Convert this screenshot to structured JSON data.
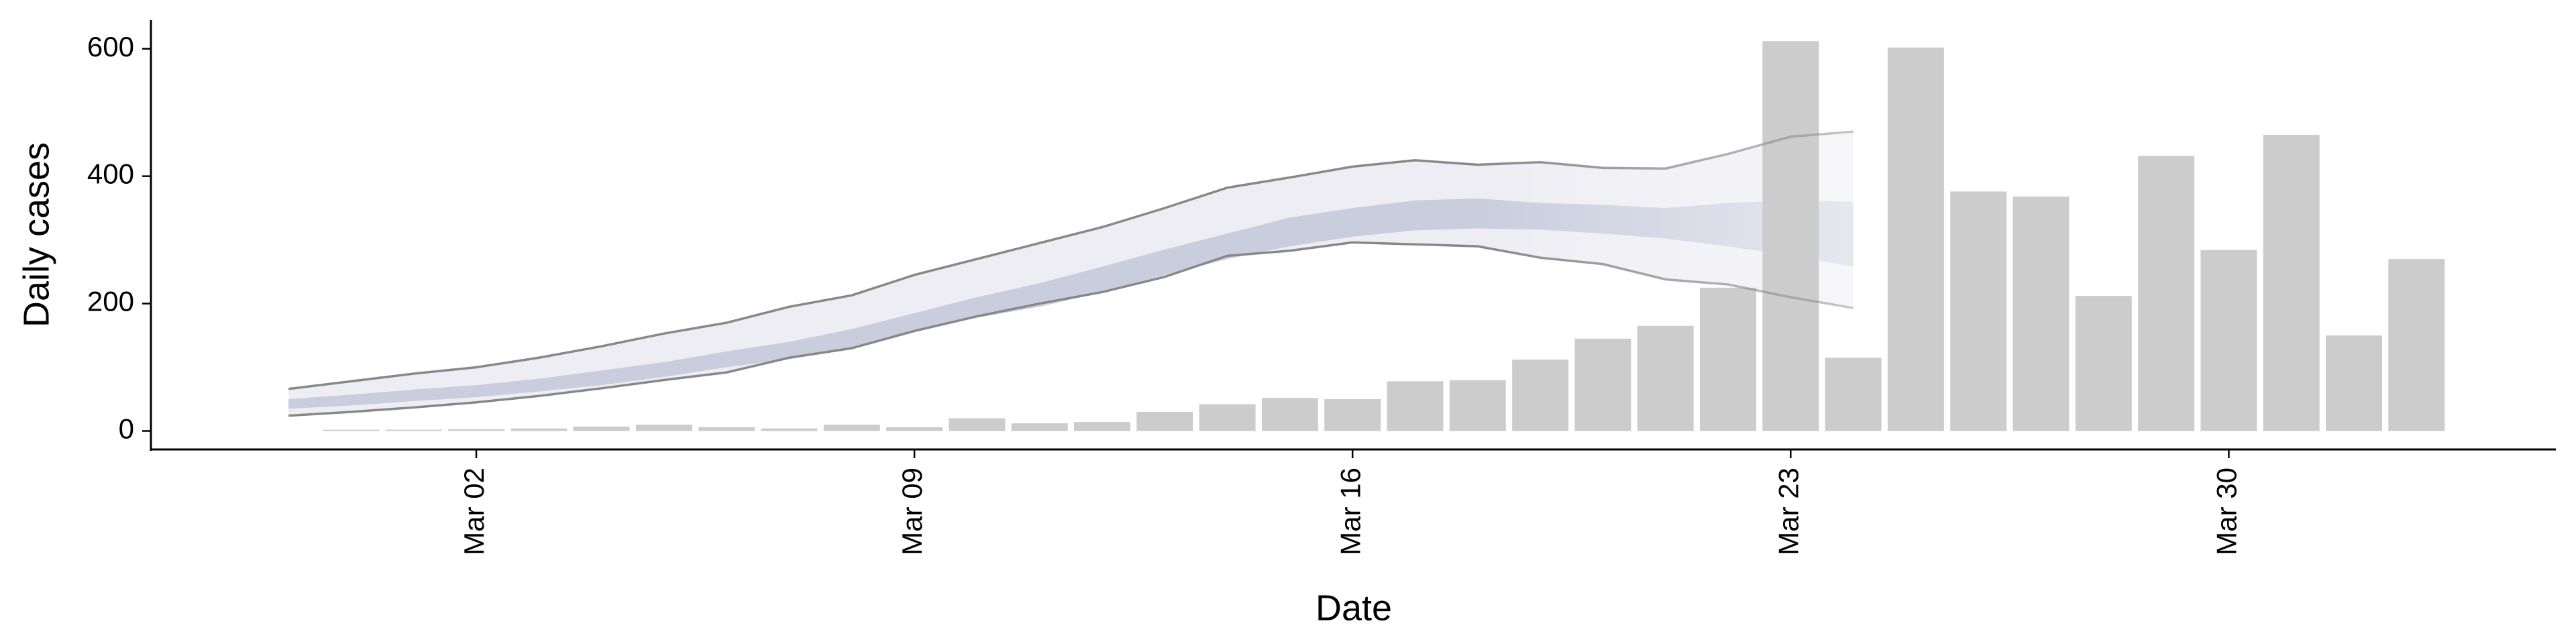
{
  "chart_data": {
    "type": "bar",
    "x_label": "Date",
    "y_label": "Daily cases",
    "categories": [
      null,
      null,
      null,
      "Mar 02",
      null,
      null,
      null,
      null,
      null,
      null,
      "Mar 09",
      null,
      null,
      null,
      null,
      null,
      null,
      "Mar 16",
      null,
      null,
      null,
      null,
      null,
      null,
      "Mar 23",
      null,
      null,
      null,
      null,
      null,
      null,
      "Mar 30",
      null,
      null,
      null
    ],
    "values": [
      null,
      2,
      2,
      3,
      4,
      7,
      10,
      6,
      4,
      10,
      6,
      20,
      12,
      14,
      30,
      42,
      52,
      50,
      78,
      80,
      112,
      145,
      165,
      225,
      612,
      115,
      602,
      376,
      368,
      212,
      432,
      284,
      465,
      150,
      270
    ],
    "color": "#cccccc",
    "interval_outer": {
      "color": "#ededf3",
      "line_color": "#888888",
      "lower": [
        24,
        30,
        37,
        45,
        55,
        67,
        80,
        92,
        115,
        130,
        157,
        180,
        200,
        218,
        242,
        275,
        283,
        296,
        293,
        290,
        272,
        262,
        238,
        230,
        210,
        193,
        null,
        null,
        null,
        null,
        null,
        null,
        null,
        null,
        null
      ],
      "upper": [
        66,
        78,
        90,
        100,
        115,
        133,
        153,
        170,
        195,
        213,
        245,
        270,
        295,
        320,
        350,
        382,
        398,
        415,
        425,
        418,
        422,
        413,
        412,
        435,
        462,
        470,
        null,
        null,
        null,
        null,
        null,
        null,
        null,
        null,
        null
      ]
    },
    "interval_inner": {
      "color": "#c9cddd",
      "lower": [
        35,
        40,
        47,
        53,
        62,
        72,
        85,
        100,
        113,
        130,
        158,
        178,
        195,
        218,
        245,
        270,
        290,
        305,
        315,
        318,
        316,
        310,
        302,
        290,
        275,
        258,
        null,
        null,
        null,
        null,
        null,
        null,
        null,
        null,
        null
      ],
      "upper": [
        50,
        57,
        65,
        72,
        82,
        95,
        108,
        125,
        140,
        160,
        185,
        210,
        232,
        258,
        285,
        310,
        335,
        350,
        362,
        365,
        358,
        355,
        350,
        358,
        362,
        360,
        null,
        null,
        null,
        null,
        null,
        null,
        null,
        null,
        null
      ]
    },
    "ylim": [
      -29,
      645
    ],
    "yticks": [
      0,
      200,
      400,
      600
    ],
    "grid": false
  }
}
